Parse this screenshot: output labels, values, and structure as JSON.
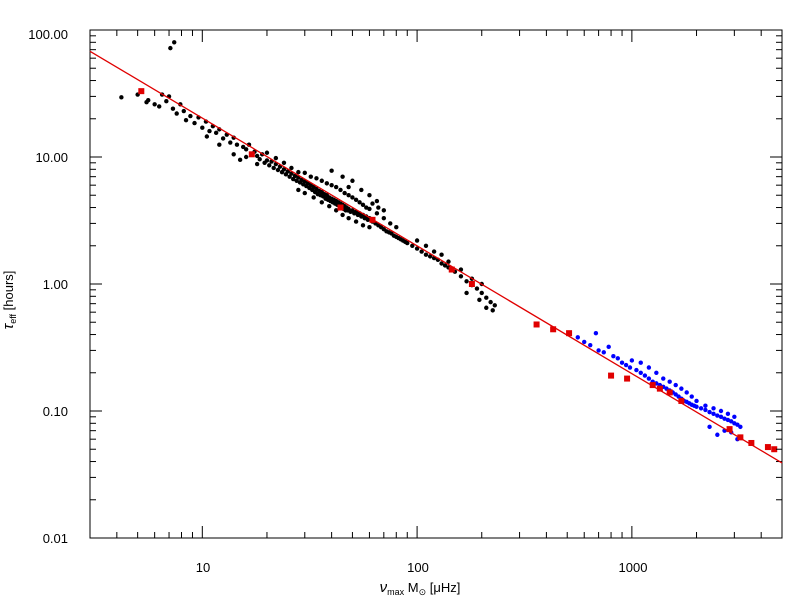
{
  "chart_data": {
    "type": "scatter",
    "title": "",
    "xscale": "log",
    "yscale": "log",
    "xlim": [
      3,
      5000
    ],
    "ylim": [
      0.01,
      100
    ],
    "grid": false,
    "xlabel": {
      "symbol": "ν",
      "sub1": "max",
      "mid": " M",
      "sub2": "⊙",
      "units": " [μHz]"
    },
    "ylabel": {
      "symbol": "τ",
      "sub": "eff",
      "units": " [hours]"
    },
    "xticks": [
      {
        "value": 10,
        "label": "10"
      },
      {
        "value": 100,
        "label": "100"
      },
      {
        "value": 1000,
        "label": "1000"
      }
    ],
    "yticks": [
      {
        "value": 100,
        "label": "100.00"
      },
      {
        "value": 10,
        "label": "10.00"
      },
      {
        "value": 1,
        "label": "1.00"
      },
      {
        "value": 0.1,
        "label": "0.10"
      },
      {
        "value": 0.01,
        "label": "0.01"
      }
    ],
    "series": [
      {
        "color": "#000000",
        "marker": "dot",
        "points": [
          [
            4.2,
            29.5
          ],
          [
            5.0,
            31.0
          ],
          [
            5.5,
            27.0
          ],
          [
            5.6,
            28.0
          ],
          [
            6.0,
            26.0
          ],
          [
            6.3,
            25.0
          ],
          [
            6.5,
            31.0
          ],
          [
            6.8,
            27.5
          ],
          [
            7.0,
            30.0
          ],
          [
            7.3,
            24.0
          ],
          [
            7.4,
            80.0
          ],
          [
            7.1,
            72.0
          ],
          [
            7.6,
            22.0
          ],
          [
            7.9,
            26.0
          ],
          [
            8.2,
            23.0
          ],
          [
            8.4,
            19.5
          ],
          [
            8.8,
            21.0
          ],
          [
            9.2,
            18.5
          ],
          [
            9.6,
            20.5
          ],
          [
            10.0,
            17.0
          ],
          [
            10.4,
            19.0
          ],
          [
            10.8,
            16.0
          ],
          [
            11.2,
            17.5
          ],
          [
            11.6,
            15.5
          ],
          [
            12.0,
            16.5
          ],
          [
            12.5,
            14.0
          ],
          [
            13.0,
            15.0
          ],
          [
            13.5,
            13.0
          ],
          [
            14.0,
            14.2
          ],
          [
            14.5,
            12.5
          ],
          [
            15.0,
            9.5
          ],
          [
            15.5,
            12.0
          ],
          [
            16.0,
            11.5
          ],
          [
            16.5,
            12.5
          ],
          [
            17.0,
            10.5
          ],
          [
            17.5,
            11.0
          ],
          [
            18.0,
            10.2
          ],
          [
            18.5,
            9.6
          ],
          [
            19.0,
            10.5
          ],
          [
            19.5,
            9.0
          ],
          [
            20.0,
            9.4
          ],
          [
            20.5,
            8.6
          ],
          [
            21.0,
            9.2
          ],
          [
            21.5,
            8.2
          ],
          [
            22.0,
            8.8
          ],
          [
            22.5,
            7.9
          ],
          [
            23.0,
            8.4
          ],
          [
            23.5,
            7.6
          ],
          [
            24.0,
            8.0
          ],
          [
            24.5,
            7.3
          ],
          [
            25.0,
            7.7
          ],
          [
            25.5,
            7.0
          ],
          [
            26.0,
            7.4
          ],
          [
            26.5,
            6.7
          ],
          [
            27.0,
            7.1
          ],
          [
            27.5,
            6.5
          ],
          [
            28.0,
            6.9
          ],
          [
            28.5,
            6.3
          ],
          [
            29.0,
            6.6
          ],
          [
            29.5,
            6.1
          ],
          [
            30.0,
            6.4
          ],
          [
            30.5,
            5.9
          ],
          [
            31.0,
            6.2
          ],
          [
            31.5,
            5.7
          ],
          [
            32.0,
            6.0
          ],
          [
            32.5,
            5.5
          ],
          [
            33.0,
            5.8
          ],
          [
            33.5,
            5.3
          ],
          [
            34.0,
            5.6
          ],
          [
            34.5,
            5.1
          ],
          [
            35.0,
            5.4
          ],
          [
            35.5,
            5.0
          ],
          [
            36.0,
            5.3
          ],
          [
            36.5,
            4.9
          ],
          [
            37.0,
            5.1
          ],
          [
            37.5,
            4.7
          ],
          [
            38.0,
            5.0
          ],
          [
            38.5,
            4.6
          ],
          [
            39.0,
            4.8
          ],
          [
            39.5,
            4.5
          ],
          [
            40.0,
            4.7
          ],
          [
            40.5,
            4.4
          ],
          [
            41.0,
            4.6
          ],
          [
            41.5,
            4.3
          ],
          [
            42.0,
            4.5
          ],
          [
            42.5,
            4.2
          ],
          [
            43.0,
            4.4
          ],
          [
            43.5,
            4.1
          ],
          [
            44.0,
            4.3
          ],
          [
            44.5,
            4.0
          ],
          [
            45.0,
            4.2
          ],
          [
            45.5,
            3.9
          ],
          [
            46.0,
            4.1
          ],
          [
            46.5,
            3.8
          ],
          [
            47.0,
            4.0
          ],
          [
            47.5,
            3.8
          ],
          [
            48.0,
            3.9
          ],
          [
            49.0,
            3.7
          ],
          [
            50.0,
            3.8
          ],
          [
            51.0,
            3.6
          ],
          [
            52.0,
            3.7
          ],
          [
            53.0,
            3.5
          ],
          [
            54.0,
            3.6
          ],
          [
            55.0,
            3.4
          ],
          [
            56.0,
            3.5
          ],
          [
            57.0,
            3.3
          ],
          [
            58.0,
            3.4
          ],
          [
            59.0,
            3.2
          ],
          [
            60.0,
            3.3
          ],
          [
            62.0,
            3.1
          ],
          [
            64.0,
            3.0
          ],
          [
            66.0,
            2.9
          ],
          [
            68.0,
            2.8
          ],
          [
            70.0,
            2.7
          ],
          [
            72.0,
            2.6
          ],
          [
            74.0,
            2.55
          ],
          [
            76.0,
            2.5
          ],
          [
            78.0,
            2.4
          ],
          [
            80.0,
            2.35
          ],
          [
            82.0,
            2.3
          ],
          [
            84.0,
            2.25
          ],
          [
            86.0,
            2.2
          ],
          [
            88.0,
            2.15
          ],
          [
            90.0,
            2.1
          ],
          [
            95.0,
            2.0
          ],
          [
            100.0,
            1.9
          ],
          [
            105.0,
            1.8
          ],
          [
            110.0,
            1.7
          ],
          [
            115.0,
            1.65
          ],
          [
            120.0,
            1.6
          ],
          [
            125.0,
            1.55
          ],
          [
            130.0,
            1.45
          ],
          [
            135.0,
            1.4
          ],
          [
            140.0,
            1.35
          ],
          [
            150.0,
            1.25
          ],
          [
            160.0,
            1.15
          ],
          [
            170.0,
            1.05
          ],
          [
            180.0,
            0.98
          ],
          [
            190.0,
            0.92
          ],
          [
            200.0,
            0.85
          ],
          [
            210.0,
            0.78
          ],
          [
            220.0,
            0.72
          ],
          [
            230.0,
            0.68
          ],
          [
            30.0,
            7.5
          ],
          [
            32.0,
            7.0
          ],
          [
            34.0,
            6.8
          ],
          [
            36.0,
            6.5
          ],
          [
            38.0,
            6.2
          ],
          [
            40.0,
            6.0
          ],
          [
            42.0,
            5.8
          ],
          [
            44.0,
            5.5
          ],
          [
            46.0,
            5.2
          ],
          [
            48.0,
            5.0
          ],
          [
            50.0,
            4.8
          ],
          [
            52.0,
            4.6
          ],
          [
            54.0,
            4.4
          ],
          [
            56.0,
            4.2
          ],
          [
            58.0,
            4.0
          ],
          [
            60.0,
            3.9
          ],
          [
            65.0,
            3.6
          ],
          [
            70.0,
            3.3
          ],
          [
            75.0,
            3.0
          ],
          [
            80.0,
            2.8
          ],
          [
            28.0,
            5.5
          ],
          [
            30.0,
            5.2
          ],
          [
            33.0,
            4.8
          ],
          [
            36.0,
            4.4
          ],
          [
            39.0,
            4.1
          ],
          [
            42.0,
            3.8
          ],
          [
            45.0,
            3.5
          ],
          [
            48.0,
            3.3
          ],
          [
            52.0,
            3.1
          ],
          [
            56.0,
            2.9
          ],
          [
            60.0,
            2.8
          ],
          [
            20.0,
            10.8
          ],
          [
            22.0,
            9.8
          ],
          [
            24.0,
            9.0
          ],
          [
            26.0,
            8.2
          ],
          [
            28.0,
            7.6
          ],
          [
            14.0,
            10.5
          ],
          [
            16.0,
            10.0
          ],
          [
            18.0,
            8.8
          ],
          [
            12.0,
            12.5
          ],
          [
            10.5,
            14.5
          ],
          [
            55.0,
            5.5
          ],
          [
            60.0,
            5.0
          ],
          [
            65.0,
            4.5
          ],
          [
            50.0,
            6.5
          ],
          [
            45.0,
            7.0
          ],
          [
            48.0,
            5.8
          ],
          [
            40.0,
            7.8
          ],
          [
            62.0,
            4.3
          ],
          [
            70.0,
            3.8
          ],
          [
            66.0,
            4.0
          ],
          [
            100.0,
            2.2
          ],
          [
            110.0,
            2.0
          ],
          [
            120.0,
            1.8
          ],
          [
            130.0,
            1.7
          ],
          [
            140.0,
            1.5
          ],
          [
            160.0,
            1.3
          ],
          [
            180.0,
            1.1
          ],
          [
            200.0,
            1.0
          ],
          [
            210.0,
            0.65
          ],
          [
            225.0,
            0.62
          ],
          [
            195.0,
            0.75
          ],
          [
            170.0,
            0.85
          ]
        ]
      },
      {
        "color": "#0000ff",
        "marker": "dot",
        "points": [
          [
            560,
            0.38
          ],
          [
            600,
            0.35
          ],
          [
            640,
            0.33
          ],
          [
            680,
            0.41
          ],
          [
            700,
            0.3
          ],
          [
            740,
            0.29
          ],
          [
            780,
            0.32
          ],
          [
            820,
            0.27
          ],
          [
            860,
            0.26
          ],
          [
            900,
            0.24
          ],
          [
            940,
            0.23
          ],
          [
            980,
            0.22
          ],
          [
            1000,
            0.25
          ],
          [
            1050,
            0.21
          ],
          [
            1100,
            0.2
          ],
          [
            1150,
            0.19
          ],
          [
            1200,
            0.18
          ],
          [
            1250,
            0.17
          ],
          [
            1300,
            0.165
          ],
          [
            1350,
            0.16
          ],
          [
            1400,
            0.155
          ],
          [
            1450,
            0.15
          ],
          [
            1500,
            0.145
          ],
          [
            1550,
            0.14
          ],
          [
            1600,
            0.135
          ],
          [
            1650,
            0.13
          ],
          [
            1700,
            0.125
          ],
          [
            1750,
            0.12
          ],
          [
            1800,
            0.118
          ],
          [
            1850,
            0.115
          ],
          [
            1900,
            0.112
          ],
          [
            1950,
            0.11
          ],
          [
            2000,
            0.108
          ],
          [
            2100,
            0.105
          ],
          [
            2200,
            0.102
          ],
          [
            2300,
            0.098
          ],
          [
            2400,
            0.095
          ],
          [
            2500,
            0.092
          ],
          [
            2600,
            0.09
          ],
          [
            2700,
            0.087
          ],
          [
            2800,
            0.085
          ],
          [
            2900,
            0.083
          ],
          [
            3000,
            0.08
          ],
          [
            3100,
            0.078
          ],
          [
            3200,
            0.075
          ],
          [
            1100,
            0.24
          ],
          [
            1200,
            0.22
          ],
          [
            1300,
            0.2
          ],
          [
            1400,
            0.18
          ],
          [
            1500,
            0.17
          ],
          [
            1600,
            0.16
          ],
          [
            1700,
            0.15
          ],
          [
            1800,
            0.14
          ],
          [
            1900,
            0.13
          ],
          [
            2000,
            0.12
          ],
          [
            2200,
            0.11
          ],
          [
            2400,
            0.105
          ],
          [
            2600,
            0.1
          ],
          [
            2800,
            0.095
          ],
          [
            3000,
            0.09
          ],
          [
            2500,
            0.065
          ],
          [
            2700,
            0.07
          ],
          [
            3100,
            0.06
          ],
          [
            2300,
            0.075
          ],
          [
            2900,
            0.068
          ]
        ]
      },
      {
        "color": "#e00000",
        "marker": "square",
        "points": [
          [
            5.2,
            33.0
          ],
          [
            17.0,
            10.5
          ],
          [
            44.0,
            4.0
          ],
          [
            62.0,
            3.2
          ],
          [
            145.0,
            1.3
          ],
          [
            180.0,
            1.0
          ],
          [
            360,
            0.48
          ],
          [
            430,
            0.44
          ],
          [
            510,
            0.41
          ],
          [
            800,
            0.19
          ],
          [
            950,
            0.18
          ],
          [
            1250,
            0.16
          ],
          [
            1350,
            0.15
          ],
          [
            1500,
            0.14
          ],
          [
            1700,
            0.12
          ],
          [
            2850,
            0.072
          ],
          [
            3200,
            0.062
          ],
          [
            3600,
            0.056
          ],
          [
            4300,
            0.052
          ],
          [
            4600,
            0.05
          ]
        ]
      }
    ],
    "fit_line": {
      "color": "#e00000",
      "x": [
        3,
        5000
      ],
      "y": [
        68,
        0.039
      ]
    }
  }
}
